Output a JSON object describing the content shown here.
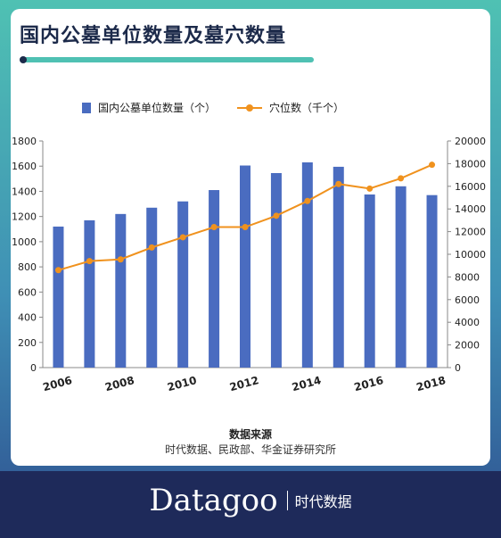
{
  "title": "国内公墓单位数量及墓穴数量",
  "legend": {
    "bar_label": "国内公墓单位数量（个）",
    "line_label": "穴位数（千个）"
  },
  "source": {
    "title": "数据来源",
    "text": "时代数据、民政部、华金证券研究所"
  },
  "brand": {
    "name": "Datagoo",
    "sub": "时代数据"
  },
  "colors": {
    "bar": "#4a6cc0",
    "line": "#f0921e",
    "title": "#1c2a4a",
    "footer": "#1e2a5a",
    "accent": "#4fc1b3"
  },
  "chart_data": {
    "type": "bar+line",
    "categories": [
      2006,
      2007,
      2008,
      2009,
      2010,
      2011,
      2012,
      2013,
      2014,
      2015,
      2016,
      2017,
      2018
    ],
    "x_tick_labels": [
      "2006",
      "2008",
      "2010",
      "2012",
      "2014",
      "2016",
      "2018"
    ],
    "series": [
      {
        "name": "国内公墓单位数量（个）",
        "type": "bar",
        "axis": "left",
        "values": [
          1120,
          1170,
          1220,
          1270,
          1320,
          1410,
          1605,
          1545,
          1630,
          1595,
          1375,
          1440,
          1370
        ]
      },
      {
        "name": "穴位数（千个）",
        "type": "line",
        "axis": "right",
        "values": [
          8600,
          9400,
          9550,
          10600,
          11500,
          12400,
          12400,
          13400,
          14700,
          16200,
          15800,
          16700,
          17900
        ]
      }
    ],
    "y_left": {
      "min": 0,
      "max": 1800,
      "step": 200
    },
    "y_right": {
      "min": 0,
      "max": 20000,
      "step": 2000
    },
    "grid": false,
    "legend_position": "top"
  }
}
